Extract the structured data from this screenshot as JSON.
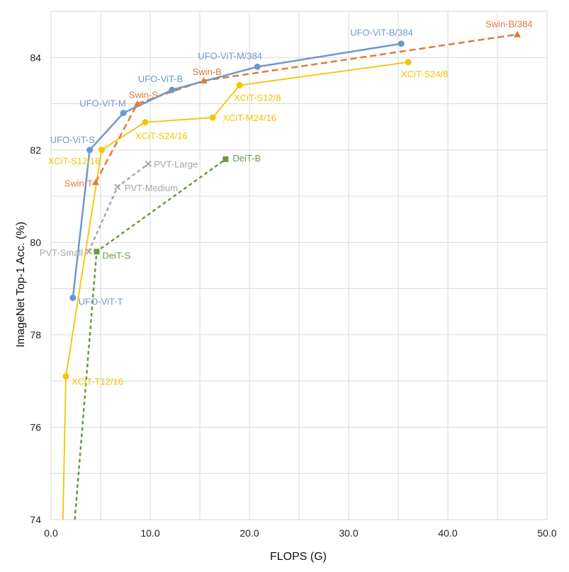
{
  "chart_data": {
    "type": "line",
    "title": "",
    "xlabel": "FLOPS (G)",
    "ylabel": "ImageNet Top-1 Acc. (%)",
    "xlim": [
      0,
      50
    ],
    "ylim": [
      74,
      85
    ],
    "x_ticks": [
      "0.0",
      "10.0",
      "20.0",
      "30.0",
      "40.0",
      "50.0"
    ],
    "y_ticks": [
      "74",
      "76",
      "78",
      "80",
      "82",
      "84"
    ],
    "grid": true,
    "series": [
      {
        "color": "#f5c400",
        "marker": "circle",
        "dash": "",
        "points": [
          {
            "x": 1.2,
            "y": 74.0,
            "label": ""
          },
          {
            "x": 1.5,
            "y": 77.1,
            "label": "XCiT-T12/16"
          },
          {
            "x": 5.1,
            "y": 82.0,
            "label": "XCiT-S12/16"
          },
          {
            "x": 9.5,
            "y": 82.6,
            "label": "XCiT-S24/16"
          },
          {
            "x": 16.3,
            "y": 82.7,
            "label": "XCiT-M24/16"
          },
          {
            "x": 19.0,
            "y": 83.4,
            "label": "XCiT-S12/8"
          },
          {
            "x": 36.0,
            "y": 83.9,
            "label": "XCiT-S24/8"
          }
        ]
      },
      {
        "color": "#6a9a3f",
        "marker": "square",
        "dash": "5 4",
        "points": [
          {
            "x": 2.4,
            "y": 74.0,
            "label": ""
          },
          {
            "x": 4.6,
            "y": 79.8,
            "label": "DeiT-S"
          },
          {
            "x": 17.6,
            "y": 81.8,
            "label": "DeiT-B"
          }
        ]
      },
      {
        "color": "#a6a6a6",
        "marker": "x",
        "dash": "5 4",
        "points": [
          {
            "x": 3.8,
            "y": 79.8,
            "label": "PVT-Small"
          },
          {
            "x": 6.7,
            "y": 81.2,
            "label": "PVT-Medium"
          },
          {
            "x": 9.8,
            "y": 81.7,
            "label": "PVT-Large"
          }
        ]
      },
      {
        "color": "#e07b39",
        "marker": "triangle",
        "dash": "9 5",
        "points": [
          {
            "x": 4.5,
            "y": 81.3,
            "label": "Swin-T"
          },
          {
            "x": 8.7,
            "y": 83.0,
            "label": "Swin-S"
          },
          {
            "x": 15.4,
            "y": 83.5,
            "label": "Swin-B"
          },
          {
            "x": 47.0,
            "y": 84.5,
            "label": "Swin-B/384"
          }
        ]
      },
      {
        "color": "#6f96cf",
        "marker": "circle",
        "dash": "",
        "points": [
          {
            "x": 2.2,
            "y": 78.8,
            "label": "UFO-ViT-T"
          },
          {
            "x": 3.9,
            "y": 82.0,
            "label": "UFO-ViT-S"
          },
          {
            "x": 7.3,
            "y": 82.8,
            "label": "UFO-ViT-M"
          },
          {
            "x": 12.2,
            "y": 83.3,
            "label": "UFO-ViT-B"
          },
          {
            "x": 20.8,
            "y": 83.8,
            "label": "UFO-ViT-M/384"
          },
          {
            "x": 35.3,
            "y": 84.3,
            "label": "UFO-ViT-B/384"
          }
        ]
      }
    ]
  }
}
